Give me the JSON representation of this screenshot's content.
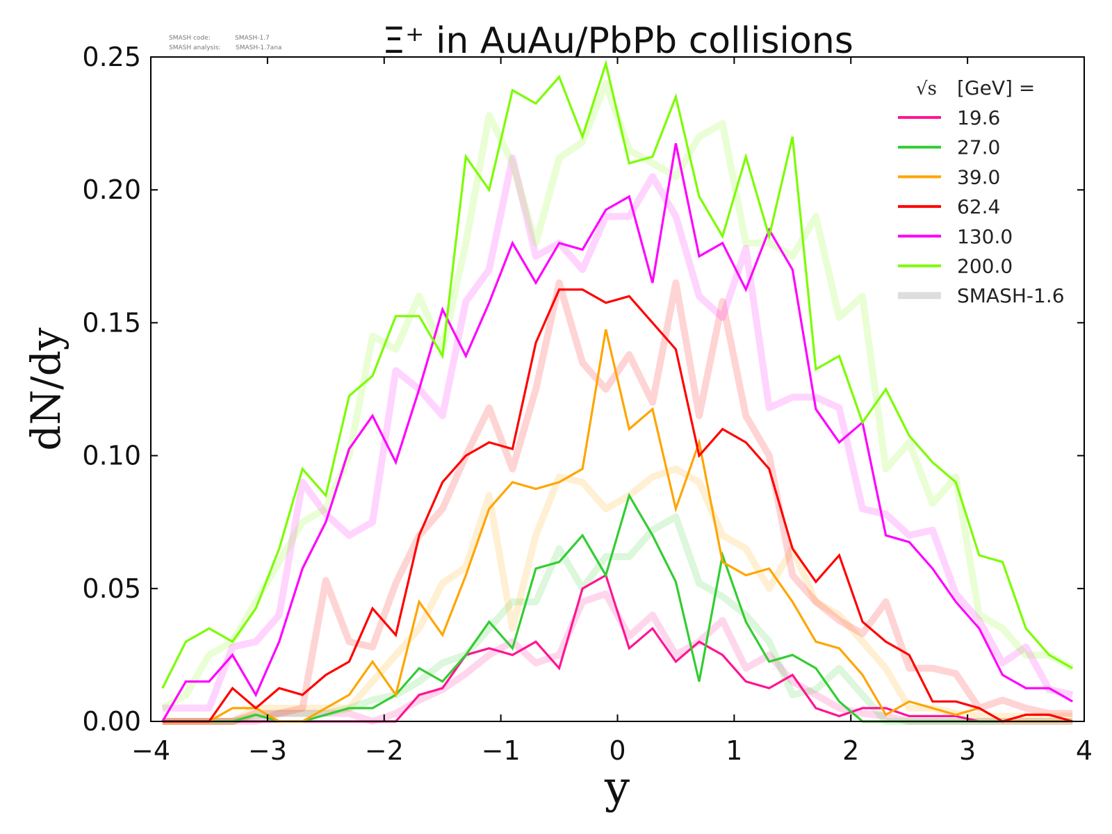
{
  "header": {
    "code_label": "SMASH code:",
    "code_value": "SMASH-1.7",
    "analysis_label": "SMASH analysis:",
    "analysis_value": "SMASH-1.7ana"
  },
  "chart_data": {
    "type": "line",
    "title": "Ξ⁺ in AuAu/PbPb collisions",
    "xlabel": "y",
    "ylabel": "dN/dy",
    "xlim": [
      -4,
      4
    ],
    "ylim": [
      0,
      0.25
    ],
    "xticks": [
      "−4",
      "−3",
      "−2",
      "−1",
      "0",
      "1",
      "2",
      "3",
      "4"
    ],
    "yticks": [
      "0.00",
      "0.05",
      "0.10",
      "0.15",
      "0.20",
      "0.25"
    ],
    "grid": false,
    "legend": {
      "placement": "top-right",
      "title_sqrt": "√s",
      "title_unit": "[GeV] =",
      "reference_label": "SMASH-1.6",
      "reference_color": "#dddddd"
    },
    "x": [
      -3.9,
      -3.7,
      -3.5,
      -3.3,
      -3.1,
      -2.9,
      -2.7,
      -2.5,
      -2.3,
      -2.1,
      -1.9,
      -1.7,
      -1.5,
      -1.3,
      -1.1,
      -0.9,
      -0.7,
      -0.5,
      -0.3,
      -0.1,
      0.1,
      0.3,
      0.5,
      0.7,
      0.9,
      1.1,
      1.3,
      1.5,
      1.7,
      1.9,
      2.1,
      2.3,
      2.5,
      2.7,
      2.9,
      3.1,
      3.3,
      3.5,
      3.7,
      3.9
    ],
    "series": [
      {
        "name": "19.6",
        "color": "#ff1493",
        "values": [
          0,
          0,
          0,
          0,
          0,
          0,
          0,
          0,
          0,
          0,
          0,
          0.01,
          0.0125,
          0.025,
          0.0275,
          0.025,
          0.03,
          0.02,
          0.05,
          0.055,
          0.0275,
          0.035,
          0.0225,
          0.03,
          0.025,
          0.015,
          0.0125,
          0.0175,
          0.005,
          0.002,
          0.005,
          0.005,
          0.002,
          0.002,
          0.002,
          0,
          0,
          0,
          0,
          0
        ],
        "reference": [
          0,
          0,
          0,
          0,
          0,
          0.003,
          0.003,
          0.003,
          0.003,
          0,
          0.003,
          0.008,
          0.012,
          0.018,
          0.025,
          0.03,
          0.022,
          0.025,
          0.045,
          0.048,
          0.032,
          0.04,
          0.025,
          0.03,
          0.038,
          0.02,
          0.025,
          0.015,
          0.01,
          0.005,
          0.003,
          0.002,
          0,
          0,
          0,
          0,
          0,
          0,
          0,
          0
        ]
      },
      {
        "name": "27.0",
        "color": "#32cd32",
        "values": [
          0,
          0,
          0,
          0,
          0.0025,
          0,
          0,
          0.0025,
          0.005,
          0.005,
          0.01,
          0.02,
          0.015,
          0.025,
          0.0375,
          0.0275,
          0.0575,
          0.06,
          0.07,
          0.055,
          0.085,
          0.07,
          0.0525,
          0.015,
          0.0625,
          0.0375,
          0.0225,
          0.025,
          0.02,
          0.0075,
          0,
          0,
          0,
          0,
          0,
          0,
          0,
          0,
          0,
          0
        ],
        "reference": [
          0,
          0,
          0,
          0,
          0.002,
          0.003,
          0.003,
          0.003,
          0.005,
          0.008,
          0.01,
          0.015,
          0.022,
          0.025,
          0.035,
          0.045,
          0.045,
          0.065,
          0.05,
          0.062,
          0.062,
          0.072,
          0.077,
          0.052,
          0.047,
          0.04,
          0.03,
          0.01,
          0.012,
          0.02,
          0.01,
          0,
          0,
          0,
          0,
          0,
          0,
          0,
          0,
          0
        ]
      },
      {
        "name": "39.0",
        "color": "#ffa500",
        "values": [
          0,
          0,
          0,
          0.005,
          0.005,
          0,
          0,
          0.005,
          0.01,
          0.0225,
          0.01,
          0.045,
          0.0325,
          0.055,
          0.08,
          0.09,
          0.0875,
          0.09,
          0.095,
          0.1475,
          0.11,
          0.1175,
          0.08,
          0.105,
          0.06,
          0.055,
          0.0575,
          0.045,
          0.03,
          0.0275,
          0.0175,
          0.0025,
          0.0075,
          0.005,
          0.0025,
          0.005,
          0,
          0,
          0,
          0
        ],
        "reference": [
          0,
          0,
          0,
          0,
          0.005,
          0.005,
          0.005,
          0.005,
          0.005,
          0.015,
          0.025,
          0.035,
          0.052,
          0.058,
          0.085,
          0.035,
          0.07,
          0.092,
          0.09,
          0.08,
          0.085,
          0.092,
          0.095,
          0.09,
          0.07,
          0.065,
          0.05,
          0.065,
          0.045,
          0.04,
          0.03,
          0.02,
          0.005,
          0.005,
          0.003,
          0.002,
          0.002,
          0.002,
          0.002,
          0.002
        ]
      },
      {
        "name": "62.4",
        "color": "#ff0000",
        "values": [
          0,
          0,
          0,
          0.0125,
          0.005,
          0.0125,
          0.01,
          0.0175,
          0.0225,
          0.0425,
          0.0325,
          0.07,
          0.09,
          0.1,
          0.105,
          0.1025,
          0.1425,
          0.1625,
          0.1625,
          0.1575,
          0.16,
          0.15,
          0.14,
          0.1,
          0.11,
          0.105,
          0.095,
          0.065,
          0.0525,
          0.0625,
          0.0375,
          0.03,
          0.025,
          0.0075,
          0.0075,
          0.005,
          0,
          0.0025,
          0.0025,
          0
        ],
        "reference": [
          0,
          0,
          0,
          0,
          0.003,
          0.003,
          0.005,
          0.053,
          0.03,
          0.028,
          0.052,
          0.07,
          0.08,
          0.1,
          0.118,
          0.095,
          0.125,
          0.165,
          0.135,
          0.125,
          0.138,
          0.12,
          0.165,
          0.115,
          0.158,
          0.115,
          0.1,
          0.055,
          0.045,
          0.038,
          0.033,
          0.045,
          0.02,
          0.02,
          0.018,
          0.005,
          0.008,
          0.005,
          0.003,
          0.003
        ]
      },
      {
        "name": "130.0",
        "color": "#ff00ff",
        "values": [
          0,
          0.015,
          0.015,
          0.025,
          0.01,
          0.03,
          0.0575,
          0.075,
          0.1025,
          0.115,
          0.0975,
          0.125,
          0.155,
          0.1375,
          0.1575,
          0.18,
          0.165,
          0.18,
          0.1775,
          0.1925,
          0.1975,
          0.165,
          0.2175,
          0.175,
          0.18,
          0.1625,
          0.185,
          0.17,
          0.1175,
          0.105,
          0.1125,
          0.07,
          0.0675,
          0.0575,
          0.045,
          0.035,
          0.0175,
          0.0125,
          0.0125,
          0.0075
        ],
        "reference": [
          0.005,
          0.005,
          0.005,
          0.028,
          0.03,
          0.04,
          0.09,
          0.078,
          0.07,
          0.075,
          0.132,
          0.125,
          0.115,
          0.158,
          0.17,
          0.212,
          0.175,
          0.18,
          0.17,
          0.19,
          0.19,
          0.205,
          0.19,
          0.16,
          0.152,
          0.178,
          0.118,
          0.122,
          0.122,
          0.118,
          0.08,
          0.078,
          0.07,
          0.072,
          0.048,
          0.038,
          0.022,
          0.028,
          0.012,
          0.01
        ]
      },
      {
        "name": "200.0",
        "color": "#7cfc00",
        "values": [
          0.0125,
          0.03,
          0.035,
          0.03,
          0.0425,
          0.065,
          0.095,
          0.085,
          0.1225,
          0.13,
          0.1525,
          0.1525,
          0.1375,
          0.2125,
          0.2,
          0.2375,
          0.2325,
          0.2425,
          0.22,
          0.2475,
          0.21,
          0.2125,
          0.235,
          0.1975,
          0.1825,
          0.2125,
          0.1825,
          0.22,
          0.1325,
          0.1375,
          0.1125,
          0.125,
          0.1075,
          0.0975,
          0.09,
          0.0625,
          0.06,
          0.035,
          0.025,
          0.02
        ],
        "reference": [
          0.005,
          0.01,
          0.025,
          0.03,
          0.045,
          0.06,
          0.075,
          0.08,
          0.1,
          0.145,
          0.14,
          0.16,
          0.14,
          0.18,
          0.228,
          0.21,
          0.18,
          0.212,
          0.218,
          0.24,
          0.215,
          0.21,
          0.205,
          0.22,
          0.225,
          0.18,
          0.18,
          0.175,
          0.19,
          0.152,
          0.16,
          0.095,
          0.105,
          0.082,
          0.092,
          0.04,
          0.035,
          0.025,
          0.025,
          0.02
        ]
      }
    ]
  }
}
